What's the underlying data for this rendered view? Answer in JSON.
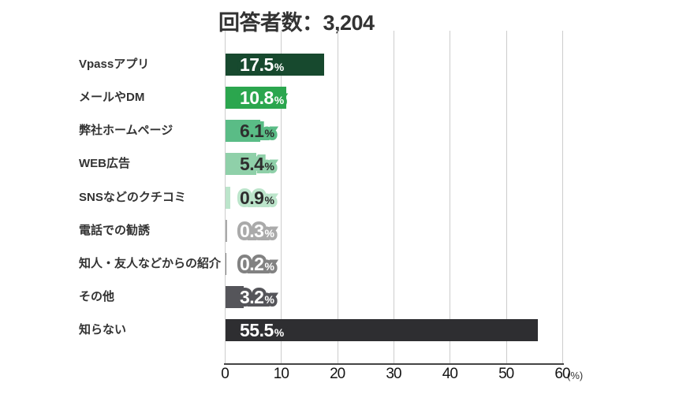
{
  "title": "回答者数：3,204",
  "chart_data": {
    "type": "bar",
    "orientation": "horizontal",
    "title": "回答者数：3,204",
    "respondent_count": "3,204",
    "categories": [
      "Vpassアプリ",
      "メールやDM",
      "弊社ホームページ",
      "WEB広告",
      "SNSなどのクチコミ",
      "電話での勧誘",
      "知人・友人などからの紹介",
      "その他",
      "知らない"
    ],
    "values": [
      17.5,
      10.8,
      6.1,
      5.4,
      0.9,
      0.3,
      0.2,
      3.2,
      55.5
    ],
    "value_display": [
      "17.5",
      "10.8",
      "6.1",
      "5.4",
      "0.9",
      "0.3",
      "0.2",
      "3.2",
      "55.5"
    ],
    "unit": "%",
    "axis_unit_label": "(%)",
    "x_ticks": [
      0,
      10,
      20,
      30,
      40,
      50,
      60
    ],
    "xlim": [
      0,
      60
    ],
    "grid": true,
    "xlabel": "",
    "ylabel": "",
    "legend": null,
    "bar_colors": [
      "#17492E",
      "#2BA64E",
      "#5ABC86",
      "#8FD0A9",
      "#BCE5CB",
      "#AAAAAA",
      "#828282",
      "#55555A",
      "#2E2E31"
    ],
    "value_text_colors": [
      "#FFFFFF",
      "#FFFFFF",
      "#2E2E2E",
      "#2E2E2E",
      "#2E2E2E",
      "#FFFFFF",
      "#FFFFFF",
      "#FFFFFF",
      "#FFFFFF"
    ],
    "gridline_color": "#CCCCCC",
    "axis_line_color": "#454545",
    "label_color": "#333333"
  }
}
